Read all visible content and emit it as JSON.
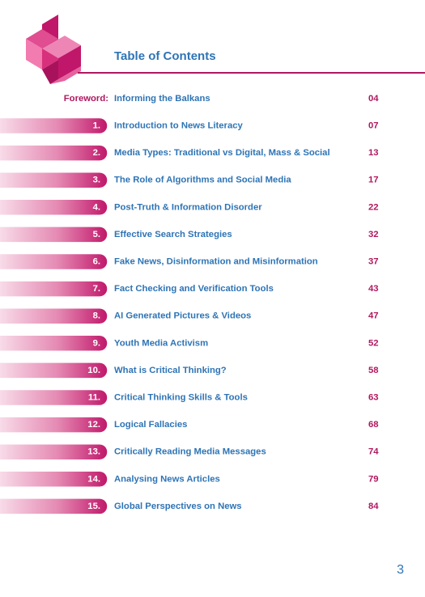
{
  "header": {
    "title": "Table of Contents"
  },
  "foreword": {
    "label": "Foreword:",
    "title": "Informing the Balkans",
    "page": "04"
  },
  "entries": [
    {
      "number": "1.",
      "title": "Introduction to News Literacy",
      "page": "07"
    },
    {
      "number": "2.",
      "title": "Media Types: Traditional vs Digital, Mass & Social",
      "page": "13"
    },
    {
      "number": "3.",
      "title": "The Role of Algorithms and Social Media",
      "page": "17"
    },
    {
      "number": "4.",
      "title": "Post-Truth & Information Disorder",
      "page": "22"
    },
    {
      "number": "5.",
      "title": "Effective Search Strategies",
      "page": "32"
    },
    {
      "number": "6.",
      "title": "Fake News, Disinformation and Misinformation",
      "page": "37"
    },
    {
      "number": "7.",
      "title": "Fact Checking and Verification Tools",
      "page": "43"
    },
    {
      "number": "8.",
      "title": "AI Generated Pictures & Videos",
      "page": "47"
    },
    {
      "number": "9.",
      "title": "Youth Media Activism",
      "page": "52"
    },
    {
      "number": "10.",
      "title": "What is Critical Thinking?",
      "page": "58"
    },
    {
      "number": "11.",
      "title": "Critical Thinking Skills & Tools",
      "page": "63"
    },
    {
      "number": "12.",
      "title": "Logical Fallacies",
      "page": "68"
    },
    {
      "number": "13.",
      "title": "Critically Reading Media Messages",
      "page": "74"
    },
    {
      "number": "14.",
      "title": "Analysing News Articles",
      "page": "79"
    },
    {
      "number": "15.",
      "title": "Global Perspectives on News",
      "page": "84"
    }
  ],
  "page_number": "3"
}
